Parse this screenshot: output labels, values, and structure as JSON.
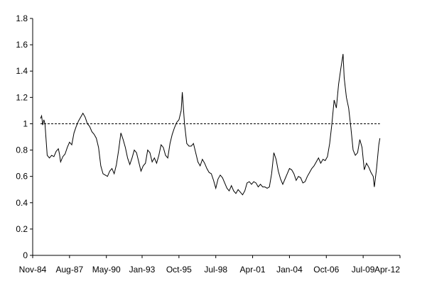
{
  "chart_data": {
    "type": "line",
    "title": "",
    "xlabel": "",
    "ylabel": "",
    "x_range": [
      "1984-11",
      "2012-04"
    ],
    "ylim": [
      0,
      1.8
    ],
    "y_ticks": [
      0,
      0.2,
      0.4,
      0.6,
      0.8,
      1,
      1.2,
      1.4,
      1.6,
      1.8
    ],
    "y_tick_labels": [
      "0",
      "0.2",
      "0.4",
      "0.6",
      "0.8",
      "1",
      "1.2",
      "1.4",
      "1.6",
      "1.8"
    ],
    "x_ticks": [
      "1984-11",
      "1987-08",
      "1990-05",
      "1993-01",
      "1995-10",
      "1998-07",
      "2001-04",
      "2004-01",
      "2006-10",
      "2009-07",
      "2012-04"
    ],
    "x_tick_labels": [
      "Nov-84",
      "Aug-87",
      "May-90",
      "Jan-93",
      "Oct-95",
      "Jul-98",
      "Apr-01",
      "Jan-04",
      "Oct-06",
      "Jul-09",
      "Apr-12"
    ],
    "grid": false,
    "legend": false,
    "reference_line": {
      "y": 1,
      "style": "dashed"
    },
    "series": [
      {
        "color": "#000000",
        "points": [
          [
            "1985-06",
            1.04
          ],
          [
            "1985-07",
            1.06
          ],
          [
            "1985-08",
            0.99
          ],
          [
            "1985-09",
            1.03
          ],
          [
            "1985-10",
            1.0
          ],
          [
            "1985-11",
            0.88
          ],
          [
            "1985-12",
            0.76
          ],
          [
            "1986-02",
            0.74
          ],
          [
            "1986-04",
            0.76
          ],
          [
            "1986-06",
            0.75
          ],
          [
            "1986-08",
            0.79
          ],
          [
            "1986-10",
            0.81
          ],
          [
            "1986-11",
            0.77
          ],
          [
            "1986-12",
            0.71
          ],
          [
            "1987-02",
            0.75
          ],
          [
            "1987-04",
            0.77
          ],
          [
            "1987-06",
            0.82
          ],
          [
            "1987-08",
            0.86
          ],
          [
            "1987-10",
            0.84
          ],
          [
            "1987-12",
            0.93
          ],
          [
            "1988-02",
            0.98
          ],
          [
            "1988-04",
            1.02
          ],
          [
            "1988-06",
            1.05
          ],
          [
            "1988-08",
            1.08
          ],
          [
            "1988-10",
            1.05
          ],
          [
            "1988-12",
            1.0
          ],
          [
            "1989-02",
            0.98
          ],
          [
            "1989-04",
            0.94
          ],
          [
            "1989-06",
            0.92
          ],
          [
            "1989-08",
            0.89
          ],
          [
            "1989-10",
            0.82
          ],
          [
            "1989-12",
            0.68
          ],
          [
            "1990-02",
            0.62
          ],
          [
            "1990-04",
            0.61
          ],
          [
            "1990-06",
            0.6
          ],
          [
            "1990-08",
            0.64
          ],
          [
            "1990-10",
            0.66
          ],
          [
            "1990-12",
            0.62
          ],
          [
            "1991-02",
            0.69
          ],
          [
            "1991-04",
            0.8
          ],
          [
            "1991-06",
            0.93
          ],
          [
            "1991-08",
            0.88
          ],
          [
            "1991-10",
            0.82
          ],
          [
            "1991-12",
            0.74
          ],
          [
            "1992-02",
            0.69
          ],
          [
            "1992-04",
            0.74
          ],
          [
            "1992-06",
            0.8
          ],
          [
            "1992-08",
            0.78
          ],
          [
            "1992-10",
            0.71
          ],
          [
            "1992-12",
            0.64
          ],
          [
            "1993-02",
            0.68
          ],
          [
            "1993-04",
            0.7
          ],
          [
            "1993-06",
            0.8
          ],
          [
            "1993-08",
            0.78
          ],
          [
            "1993-10",
            0.71
          ],
          [
            "1993-12",
            0.74
          ],
          [
            "1994-02",
            0.7
          ],
          [
            "1994-04",
            0.76
          ],
          [
            "1994-06",
            0.84
          ],
          [
            "1994-08",
            0.82
          ],
          [
            "1994-10",
            0.76
          ],
          [
            "1994-12",
            0.74
          ],
          [
            "1995-02",
            0.85
          ],
          [
            "1995-04",
            0.92
          ],
          [
            "1995-06",
            0.97
          ],
          [
            "1995-08",
            1.01
          ],
          [
            "1995-10",
            1.03
          ],
          [
            "1995-12",
            1.1
          ],
          [
            "1996-01",
            1.24
          ],
          [
            "1996-02",
            1.12
          ],
          [
            "1996-03",
            1.0
          ],
          [
            "1996-05",
            0.85
          ],
          [
            "1996-07",
            0.83
          ],
          [
            "1996-09",
            0.83
          ],
          [
            "1996-11",
            0.85
          ],
          [
            "1997-01",
            0.78
          ],
          [
            "1997-03",
            0.71
          ],
          [
            "1997-05",
            0.68
          ],
          [
            "1997-07",
            0.73
          ],
          [
            "1997-09",
            0.7
          ],
          [
            "1997-11",
            0.66
          ],
          [
            "1998-01",
            0.63
          ],
          [
            "1998-03",
            0.62
          ],
          [
            "1998-05",
            0.57
          ],
          [
            "1998-07",
            0.51
          ],
          [
            "1998-09",
            0.58
          ],
          [
            "1998-11",
            0.61
          ],
          [
            "1999-01",
            0.59
          ],
          [
            "1999-03",
            0.55
          ],
          [
            "1999-05",
            0.51
          ],
          [
            "1999-07",
            0.49
          ],
          [
            "1999-09",
            0.53
          ],
          [
            "1999-11",
            0.49
          ],
          [
            "2000-01",
            0.47
          ],
          [
            "2000-03",
            0.5
          ],
          [
            "2000-05",
            0.48
          ],
          [
            "2000-07",
            0.46
          ],
          [
            "2000-09",
            0.49
          ],
          [
            "2000-11",
            0.55
          ],
          [
            "2001-01",
            0.56
          ],
          [
            "2001-03",
            0.54
          ],
          [
            "2001-05",
            0.56
          ],
          [
            "2001-07",
            0.55
          ],
          [
            "2001-09",
            0.52
          ],
          [
            "2001-11",
            0.54
          ],
          [
            "2002-01",
            0.52
          ],
          [
            "2002-03",
            0.52
          ],
          [
            "2002-05",
            0.51
          ],
          [
            "2002-07",
            0.52
          ],
          [
            "2002-09",
            0.62
          ],
          [
            "2002-11",
            0.78
          ],
          [
            "2003-01",
            0.73
          ],
          [
            "2003-03",
            0.64
          ],
          [
            "2003-05",
            0.58
          ],
          [
            "2003-07",
            0.54
          ],
          [
            "2003-09",
            0.58
          ],
          [
            "2003-11",
            0.62
          ],
          [
            "2004-01",
            0.66
          ],
          [
            "2004-03",
            0.65
          ],
          [
            "2004-05",
            0.62
          ],
          [
            "2004-07",
            0.57
          ],
          [
            "2004-09",
            0.6
          ],
          [
            "2004-11",
            0.59
          ],
          [
            "2005-01",
            0.55
          ],
          [
            "2005-03",
            0.56
          ],
          [
            "2005-05",
            0.6
          ],
          [
            "2005-07",
            0.63
          ],
          [
            "2005-09",
            0.66
          ],
          [
            "2005-11",
            0.68
          ],
          [
            "2006-01",
            0.71
          ],
          [
            "2006-03",
            0.74
          ],
          [
            "2006-05",
            0.7
          ],
          [
            "2006-07",
            0.73
          ],
          [
            "2006-09",
            0.72
          ],
          [
            "2006-11",
            0.75
          ],
          [
            "2007-01",
            0.85
          ],
          [
            "2007-03",
            1.0
          ],
          [
            "2007-05",
            1.18
          ],
          [
            "2007-07",
            1.12
          ],
          [
            "2007-09",
            1.3
          ],
          [
            "2007-11",
            1.42
          ],
          [
            "2008-01",
            1.53
          ],
          [
            "2008-02",
            1.35
          ],
          [
            "2008-04",
            1.2
          ],
          [
            "2008-06",
            1.12
          ],
          [
            "2008-08",
            0.97
          ],
          [
            "2008-10",
            0.8
          ],
          [
            "2008-12",
            0.76
          ],
          [
            "2009-02",
            0.78
          ],
          [
            "2009-04",
            0.88
          ],
          [
            "2009-06",
            0.82
          ],
          [
            "2009-08",
            0.65
          ],
          [
            "2009-10",
            0.7
          ],
          [
            "2009-12",
            0.67
          ],
          [
            "2010-02",
            0.63
          ],
          [
            "2010-04",
            0.6
          ],
          [
            "2010-05",
            0.52
          ],
          [
            "2010-07",
            0.66
          ],
          [
            "2010-09",
            0.84
          ],
          [
            "2010-10",
            0.89
          ]
        ]
      }
    ]
  }
}
